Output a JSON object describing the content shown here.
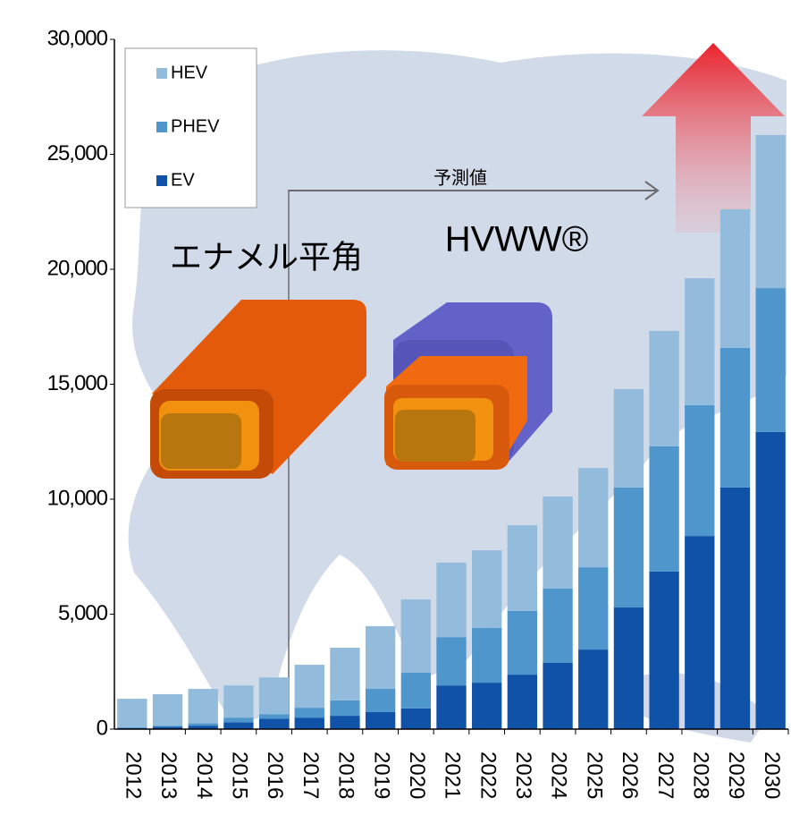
{
  "chart_data": {
    "type": "stacked_bar",
    "categories": [
      "2012",
      "2013",
      "2014",
      "2015",
      "2016",
      "2017",
      "2018",
      "2019",
      "2020",
      "2021",
      "2022",
      "2023",
      "2024",
      "2025",
      "2026",
      "2027",
      "2028",
      "2029",
      "2030"
    ],
    "series": [
      {
        "name": "EV",
        "color": "#0f52a8",
        "values": [
          50,
          100,
          150,
          300,
          450,
          500,
          580,
          740,
          900,
          1900,
          2020,
          2370,
          2880,
          3460,
          5290,
          6850,
          8400,
          10510,
          12920
        ]
      },
      {
        "name": "PHEV",
        "color": "#4f96cc",
        "values": [
          30,
          50,
          100,
          200,
          200,
          430,
          670,
          1010,
          1550,
          2100,
          2380,
          2770,
          3230,
          3580,
          5220,
          5450,
          5690,
          6070,
          6260
        ]
      },
      {
        "name": "HEV",
        "color": "#93bcdc",
        "values": [
          1240,
          1370,
          1500,
          1400,
          1600,
          1870,
          2290,
          2730,
          3190,
          3240,
          3380,
          3730,
          4010,
          4320,
          4280,
          5020,
          5520,
          6030,
          6660
        ]
      }
    ],
    "ylim": [
      0,
      30000
    ],
    "yticks": [
      0,
      {
        "value": 5000,
        "label": "5,000"
      },
      {
        "value": 10000,
        "label": "10,000"
      },
      {
        "value": 15000,
        "label": "15,000"
      },
      {
        "value": 20000,
        "label": "20,000"
      },
      {
        "value": 25000,
        "label": "25,000"
      },
      {
        "value": 30000,
        "label": "30,000"
      }
    ],
    "legend": "top-left",
    "annotations": [
      "予測値",
      "エナメル平角",
      "HVWW®"
    ]
  }
}
